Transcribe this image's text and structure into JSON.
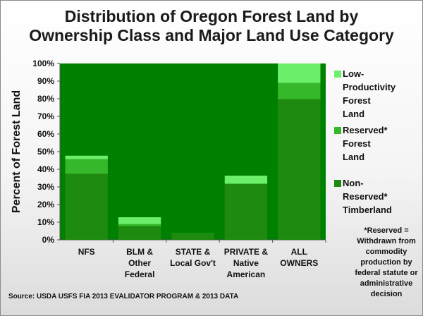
{
  "chart_data": {
    "type": "bar",
    "stacked": true,
    "title": "Distribution of Oregon Forest Land by Ownership Class and Major Land Use Category",
    "ylabel": "Percent of Forest Land",
    "xlabel": "",
    "ylim": [
      0,
      100
    ],
    "yticks": [
      "0%",
      "10%",
      "20%",
      "30%",
      "40%",
      "50%",
      "60%",
      "70%",
      "80%",
      "90%",
      "100%"
    ],
    "categories": [
      "NFS",
      "BLM & Other Federal",
      "STATE & Local Gov't",
      "PRIVATE & Native American",
      "ALL OWNERS"
    ],
    "series": [
      {
        "name": "Non-Reserved* Timberland",
        "color": "#1f8a10",
        "values": [
          37.5,
          7.8,
          3.5,
          31.8,
          79.8
        ]
      },
      {
        "name": "Reserved* Forest Land",
        "color": "#37b82b",
        "values": [
          8.3,
          1.2,
          0.2,
          0.0,
          9.2
        ]
      },
      {
        "name": "Low-Productivity Forest Land",
        "color": "#6cf06c",
        "values": [
          1.9,
          3.8,
          0.0,
          4.6,
          11.0
        ]
      }
    ],
    "legend_position": "right",
    "grid": false
  },
  "title_lines": [
    "Distribution of Oregon Forest Land by",
    "Ownership Class and Major Land Use Category"
  ],
  "legend_lines": [
    [
      "Low-Productivity",
      "Forest",
      "Land"
    ],
    [
      "Reserved*",
      "Forest",
      "Land"
    ],
    [
      "Non-",
      "Reserved*",
      "Timberland"
    ]
  ],
  "category_lines": [
    [
      "NFS"
    ],
    [
      "BLM &",
      "Other",
      "Federal"
    ],
    [
      "STATE &",
      "Local Gov't"
    ],
    [
      "PRIVATE &",
      "Native",
      "American"
    ],
    [
      "ALL",
      "OWNERS"
    ]
  ],
  "footnote_lines": [
    "*Reserved =",
    "Withdrawn from",
    "commodity",
    "production by",
    "federal statute or",
    "administrative",
    "decision"
  ],
  "source": "Source: USDA USFS FIA 2013 EVALIDATOR  PROGRAM  & 2013 DATA",
  "colors": {
    "plot_background": "#008000",
    "axis": "#555555"
  }
}
